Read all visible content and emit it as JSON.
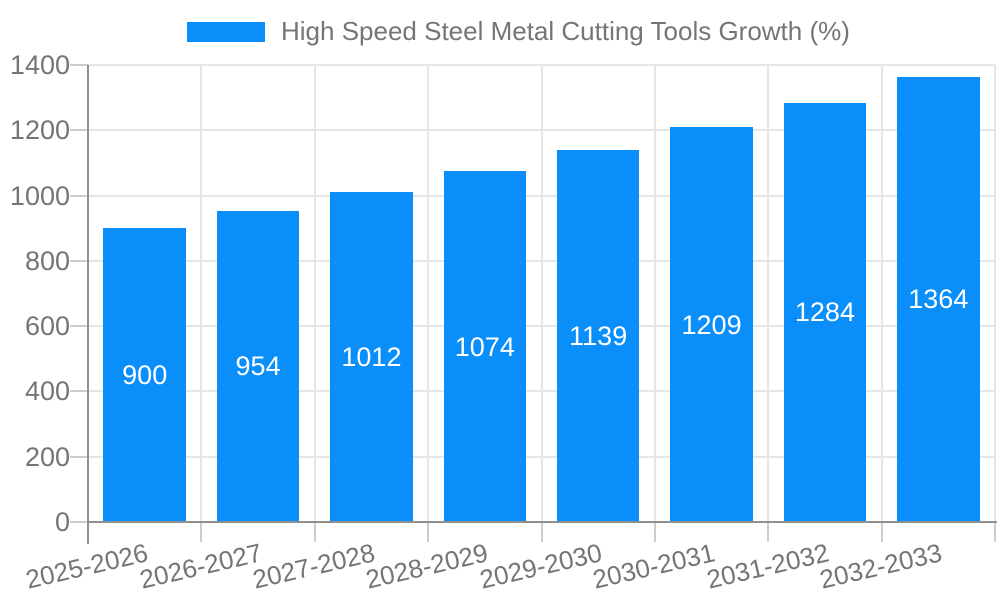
{
  "chart_data": {
    "type": "bar",
    "title": "High Speed Steel Metal Cutting Tools Growth (%)",
    "categories": [
      "2025-2026",
      "2026-2027",
      "2027-2028",
      "2028-2029",
      "2029-2030",
      "2030-2031",
      "2031-2032",
      "2032-2033"
    ],
    "series": [
      {
        "name": "High Speed Steel Metal Cutting Tools Growth (%)",
        "values": [
          900,
          954,
          1012,
          1074,
          1139,
          1209,
          1284,
          1364
        ]
      }
    ],
    "value_labels": [
      "900",
      "954",
      "1012",
      "1074",
      "1139",
      "1209",
      "1284",
      "1364"
    ],
    "xlabel": "",
    "ylabel": "",
    "ylim": [
      0,
      1400
    ],
    "yticks": [
      0,
      200,
      400,
      600,
      800,
      1000,
      1200,
      1400
    ],
    "grid": true,
    "legend_position": "top",
    "x_label_rotation_deg": -13,
    "colors": {
      "bar": "#0a8ef9",
      "value_label": "#ffffff",
      "axis_text": "#757575",
      "gridline": "#e6e6e6",
      "axis_line": "#909090",
      "tick_mark": "#cccccc",
      "background": "#ffffff"
    }
  }
}
